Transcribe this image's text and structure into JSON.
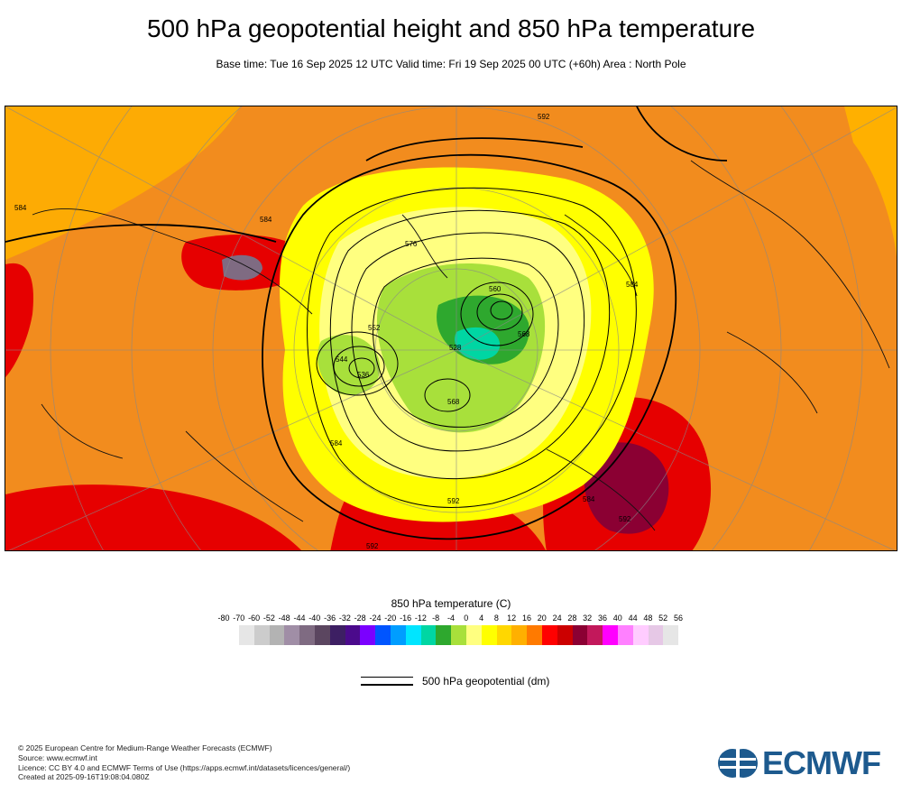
{
  "header": {
    "title": "500 hPa geopotential height and 850 hPa temperature",
    "subtitle": "Base time: Tue 16 Sep 2025 12 UTC Valid time: Fri 19 Sep 2025 00 UTC (+60h) Area : North Pole"
  },
  "map": {
    "contour_labels": [
      "592",
      "592",
      "584",
      "584",
      "584",
      "584",
      "584",
      "576",
      "568",
      "560",
      "552",
      "544",
      "536",
      "528",
      "592",
      "592",
      "568"
    ]
  },
  "legend": {
    "temperature_title": "850 hPa temperature (C)",
    "ticks": [
      "-80",
      "-70",
      "-60",
      "-52",
      "-48",
      "-44",
      "-40",
      "-36",
      "-32",
      "-28",
      "-24",
      "-20",
      "-16",
      "-12",
      "-8",
      "-4",
      "0",
      "4",
      "8",
      "12",
      "16",
      "20",
      "24",
      "28",
      "32",
      "36",
      "40",
      "44",
      "48",
      "52",
      "56"
    ],
    "colors": [
      "#e6e6e6",
      "#cccccc",
      "#b3b3b3",
      "#a08ea6",
      "#7f6b82",
      "#5b4660",
      "#3d1f63",
      "#4b0a8c",
      "#7b00ff",
      "#0055ff",
      "#009dff",
      "#00e5ff",
      "#00d6a3",
      "#2ea82e",
      "#a8e03b",
      "#ffff80",
      "#ffff00",
      "#ffd700",
      "#ffb000",
      "#ff7a00",
      "#ff0000",
      "#cc0000",
      "#8b0033",
      "#c2185b",
      "#ff00ff",
      "#ff80ff",
      "#ffccff",
      "#e6c8e6",
      "#e6e6e6"
    ],
    "geopotential_label": "500 hPa geopotential (dm)"
  },
  "footer": {
    "line1": "© 2025 European Centre for Medium-Range Weather Forecasts (ECMWF)",
    "line2": "Source: www.ecmwf.int",
    "line3": "Licence: CC BY 4.0 and ECMWF Terms of Use (https://apps.ecmwf.int/datasets/licences/general/)",
    "line4": "Created at 2025-09-16T19:08:04.080Z"
  },
  "logo": {
    "text": "ECMWF",
    "color": "#1d5a8e"
  }
}
